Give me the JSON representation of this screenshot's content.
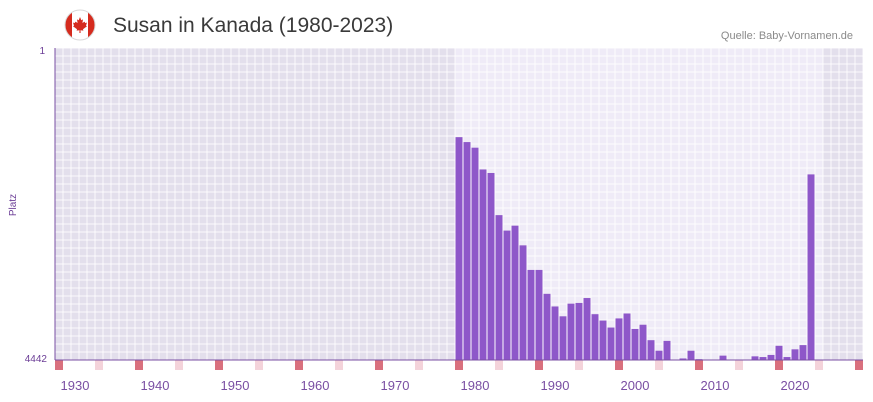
{
  "header": {
    "title": "Susan in Kanada (1980-2023)",
    "source": "Quelle: Baby-Vornamen.de"
  },
  "colors": {
    "bar": "#8e57c9",
    "plot_bg_dark": "#e3dfec",
    "plot_bg_light": "#efebf7",
    "marker": "#d9707e",
    "marker_light": "#f4d3da",
    "axis": "#7a4fa3"
  },
  "chart_data": {
    "type": "bar",
    "title": "Susan in Kanada (1980-2023)",
    "xlabel": "",
    "ylabel": "Platz",
    "y_inverted": true,
    "ylim": [
      1,
      4442
    ],
    "yticks": [
      1,
      4442
    ],
    "xlim": [
      1928,
      2029
    ],
    "xticks": [
      1930,
      1940,
      1950,
      1960,
      1970,
      1980,
      1990,
      2000,
      2010,
      2020
    ],
    "highlight_range": [
      1978,
      2023
    ],
    "x": [
      1978,
      1979,
      1980,
      1981,
      1982,
      1983,
      1984,
      1985,
      1986,
      1987,
      1988,
      1989,
      1990,
      1991,
      1992,
      1993,
      1994,
      1995,
      1996,
      1997,
      1998,
      1999,
      2000,
      2001,
      2002,
      2003,
      2004,
      2005,
      2006,
      2007,
      2008,
      2009,
      2010,
      2011,
      2012,
      2013,
      2014,
      2015,
      2016,
      2017,
      2018,
      2019,
      2020,
      2021,
      2022
    ],
    "values": [
      1270,
      1340,
      1420,
      1730,
      1780,
      2380,
      2600,
      2530,
      2810,
      3160,
      3160,
      3500,
      3680,
      3820,
      3640,
      3630,
      3560,
      3790,
      3880,
      3980,
      3850,
      3780,
      4000,
      3940,
      4160,
      4310,
      4170,
      4440,
      4420,
      4310,
      4430,
      4440,
      4620,
      4380,
      4520,
      4600,
      4480,
      4390,
      4400,
      4370,
      4240,
      4400,
      4290,
      4230,
      1800
    ]
  }
}
